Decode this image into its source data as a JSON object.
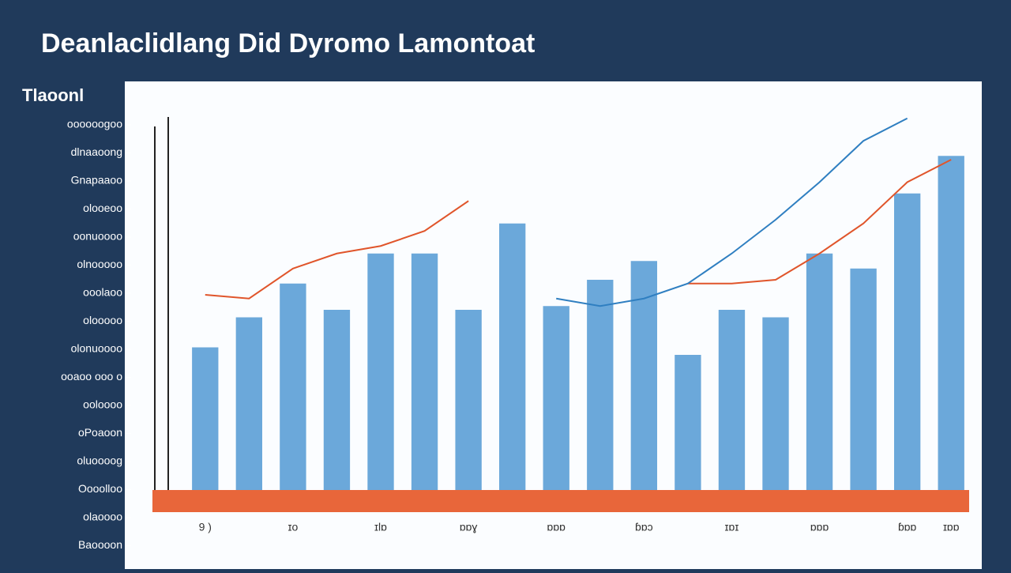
{
  "chart_data": {
    "type": "bar",
    "title": "Deanlaclidlang Did Dyromo Lamontoat",
    "ylabel": "Tlaoonl",
    "side_labels": [
      "oooooogoo",
      "dlnaaoong",
      "Gnapaaoo",
      "olooeoo",
      "oonuoooo",
      "olnooooo",
      "ooolaoo",
      "olooooo",
      "olonuoooo",
      "ooaoo ooo o",
      "ooloooo",
      "oPoaoon",
      "oluoooog",
      "Oooolloo",
      "olaoooo",
      "Baoooon"
    ],
    "categories": [
      "9 )",
      null,
      "ɪo",
      null,
      "ɪlɒ",
      null,
      "ɒɒɣ",
      null,
      "ɒɒɒ",
      null,
      "ɓɒɔ",
      null,
      "ɪɒɪ",
      null,
      "ɒɒɒ",
      null,
      "ɓɒɒ",
      "ɪɒɒ"
    ],
    "values": [
      38,
      46,
      55,
      48,
      63,
      63,
      48,
      71,
      49,
      56,
      61,
      36,
      48,
      46,
      63,
      59,
      79,
      89
    ],
    "color": "#5b9fd6",
    "series": [
      {
        "color": "#e0552b",
        "values": [
          52,
          51,
          59,
          63,
          65,
          69,
          77,
          null,
          null,
          null,
          null,
          55,
          55,
          56,
          63,
          71,
          82,
          88
        ]
      },
      {
        "color": "#2f7fc1",
        "values": [
          null,
          null,
          null,
          null,
          null,
          null,
          null,
          null,
          51,
          49,
          51,
          55,
          63,
          72,
          82,
          93,
          99,
          null
        ]
      }
    ],
    "ylim": [
      0,
      100
    ]
  }
}
